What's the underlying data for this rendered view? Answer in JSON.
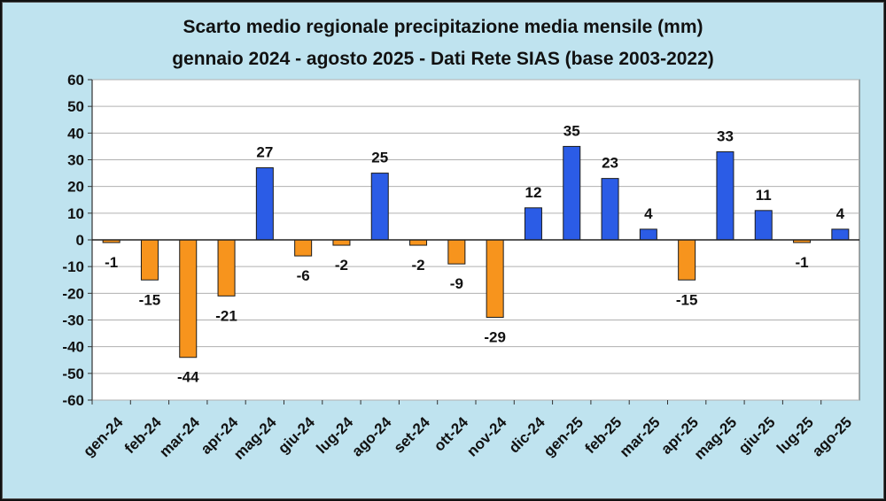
{
  "chart_data": {
    "type": "bar",
    "title": "Scarto medio regionale precipitazione media mensile (mm)",
    "subtitle": "gennaio 2024 - agosto 2025 - Dati Rete SIAS (base 2003-2022)",
    "categories": [
      "gen-24",
      "feb-24",
      "mar-24",
      "apr-24",
      "mag-24",
      "giu-24",
      "lug-24",
      "ago-24",
      "set-24",
      "ott-24",
      "nov-24",
      "dic-24",
      "gen-25",
      "feb-25",
      "mar-25",
      "apr-25",
      "mag-25",
      "giu-25",
      "lug-25",
      "ago-25"
    ],
    "values": [
      -1,
      -15,
      -44,
      -21,
      27,
      -6,
      -2,
      25,
      -2,
      -9,
      -29,
      12,
      35,
      23,
      4,
      -15,
      33,
      11,
      -1,
      4
    ],
    "data_labels": [
      "-1",
      "-15",
      "-44",
      "-21",
      "27",
      "-6",
      "-2",
      "25",
      "-2",
      "-9",
      "-29",
      "12",
      "35",
      "23",
      "4",
      "-15",
      "33",
      "11",
      "-1",
      "4"
    ],
    "ylim": [
      -60,
      60
    ],
    "yticks": [
      60,
      50,
      40,
      30,
      20,
      10,
      0,
      -10,
      -20,
      -30,
      -40,
      -50,
      -60
    ],
    "grid": true,
    "legend": "none",
    "colors": {
      "positive_even_months": "#2b5ce6",
      "negative_odd_months": "#f7941d",
      "bar_positive": "#2b5ce6",
      "bar_negative": "#f7941d",
      "plot_background": "#ffffff",
      "frame_background": "#bfe3ef"
    }
  }
}
